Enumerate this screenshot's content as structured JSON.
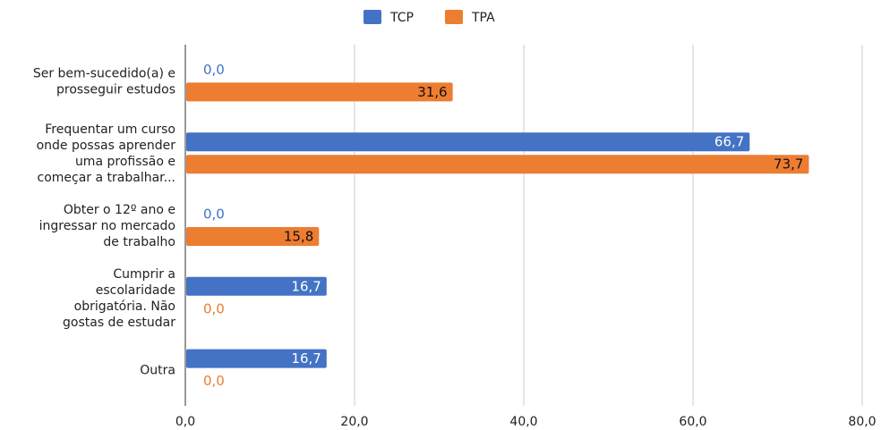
{
  "chart_data": {
    "type": "bar",
    "orientation": "horizontal",
    "categories": [
      [
        "Ser bem-sucedido(a) e",
        "prosseguir estudos"
      ],
      [
        "Frequentar um curso",
        "onde possas aprender",
        "uma profissão e",
        "começar a trabalhar..."
      ],
      [
        "Obter o 12º ano e",
        "ingressar no mercado",
        "de trabalho"
      ],
      [
        "Cumprir a",
        "escolaridade",
        "obrigatória. Não",
        "gostas de estudar"
      ],
      [
        "Outra"
      ]
    ],
    "series": [
      {
        "name": "TCP",
        "color": "#4472c4",
        "values": [
          0.0,
          66.7,
          0.0,
          16.7,
          16.7
        ],
        "labels": [
          "0,0",
          "66,7",
          "0,0",
          "16,7",
          "16,7"
        ]
      },
      {
        "name": "TPA",
        "color": "#ed7d31",
        "values": [
          31.6,
          73.7,
          15.8,
          0.0,
          0.0
        ],
        "labels": [
          "31,6",
          "73,7",
          "15,8",
          "0,0",
          "0,0"
        ]
      }
    ],
    "xlim": [
      0,
      80
    ],
    "xticks": [
      0,
      20,
      40,
      60,
      80
    ],
    "xtick_labels": [
      "0,0",
      "20,0",
      "40,0",
      "60,0",
      "80,0"
    ],
    "grid": true,
    "legend_position": "top-center",
    "title": "",
    "xlabel": "",
    "ylabel": ""
  }
}
